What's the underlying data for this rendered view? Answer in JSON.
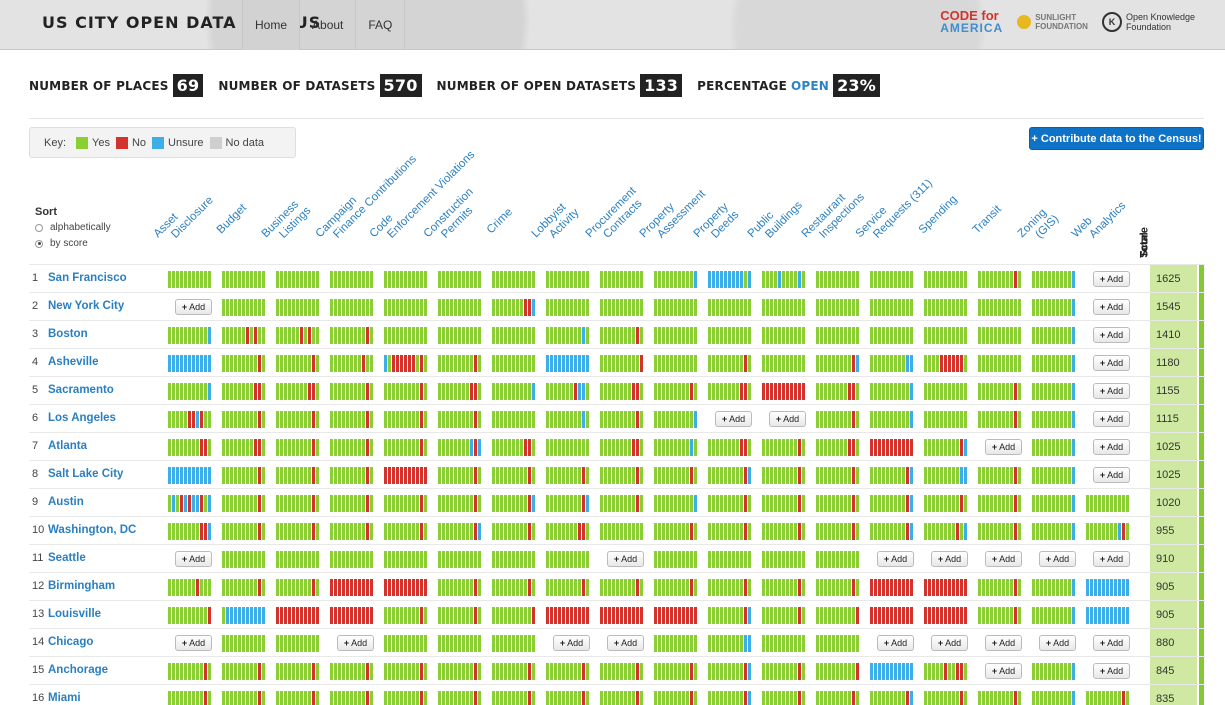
{
  "header": {
    "title": "US CITY OPEN DATA CENSUS",
    "nav": [
      "Home",
      "About",
      "FAQ"
    ],
    "logos": {
      "cfa_line1": "CODE for",
      "cfa_line2": "AMERICA",
      "sunlight_line1": "SUNLIGHT",
      "sunlight_line2": "FOUNDATION",
      "okf_line1": "Open Knowledge",
      "okf_line2": "Foundation"
    }
  },
  "stats": [
    {
      "label": "NUMBER OF PLACES",
      "value": "69"
    },
    {
      "label": "NUMBER OF DATASETS",
      "value": "570"
    },
    {
      "label": "NUMBER OF OPEN DATASETS",
      "value": "133"
    },
    {
      "label": "PERCENTAGE",
      "open_word": "OPEN",
      "value": "23%"
    }
  ],
  "key": {
    "label": "Key:",
    "items": [
      {
        "label": "Yes",
        "color": "#8ccf35"
      },
      {
        "label": "No",
        "color": "#d3332c"
      },
      {
        "label": "Unsure",
        "color": "#3eaee8"
      },
      {
        "label": "No data",
        "color": "#cfcfcf"
      }
    ]
  },
  "contribute_label": "+ Contribute data to the Census!",
  "sort": {
    "title": "Sort",
    "options": [
      "alphabetically",
      "by score"
    ],
    "selected": 1
  },
  "columns": [
    {
      "l1": "Asset",
      "l2": "Disclosure"
    },
    {
      "l1": "Budget",
      "l2": ""
    },
    {
      "l1": "Business",
      "l2": "Listings"
    },
    {
      "l1": "Campaign",
      "l2": "Finance Contributions"
    },
    {
      "l1": "Code",
      "l2": "Enforcement Violations"
    },
    {
      "l1": "Construction",
      "l2": "Permits"
    },
    {
      "l1": "Crime",
      "l2": ""
    },
    {
      "l1": "Lobbyist",
      "l2": "Activity"
    },
    {
      "l1": "Procurement",
      "l2": "Contracts"
    },
    {
      "l1": "Property",
      "l2": "Assessment"
    },
    {
      "l1": "Property",
      "l2": "Deeds"
    },
    {
      "l1": "Public",
      "l2": "Buildings"
    },
    {
      "l1": "Restaurant",
      "l2": "Inspections"
    },
    {
      "l1": "Service",
      "l2": "Requests (311)"
    },
    {
      "l1": "Spending",
      "l2": ""
    },
    {
      "l1": "Transit",
      "l2": ""
    },
    {
      "l1": "Zoning",
      "l2": "(GIS)"
    },
    {
      "l1": "Web",
      "l2": "Analytics"
    }
  ],
  "total_head": {
    "l1": "Total",
    "l2": "Score"
  },
  "add_label": "Add",
  "rows": [
    {
      "rank": "1",
      "city": "San Francisco",
      "score": "1625",
      "cells": [
        "GGGGGGGGGGG",
        "GGGGGGGGGGG",
        "GGGGGGGGGGG",
        "GGGGGGGGGGG",
        "GGGGGGGGGGG",
        "GGGGGGGGGGG",
        "GGGGGGGGGGG",
        "GGGGGGGGGGG",
        "GGGGGGGGGGG",
        "GGGGGGGGGGB",
        "BBBBBBBBBGB",
        "GGGGBGGGGBG",
        "GGGGGGGGGGG",
        "GGGGGGGGGGG",
        "GGGGGGGGGGG",
        "GGGGGGGGGRG",
        "GGGGGGGGGGB",
        "ADD"
      ]
    },
    {
      "rank": "2",
      "city": "New York City",
      "score": "1545",
      "cells": [
        "ADD",
        "GGGGGGGGGGG",
        "GGGGGGGGGGG",
        "GGGGGGGGGGG",
        "GGGGGGGGGGG",
        "GGGGGGGGGGG",
        "GGGGGGGGRRB",
        "GGGGGGGGGGG",
        "GGGGGGGGGGG",
        "GGGGGGGGGGG",
        "GGGGGGGGGGG",
        "GGGGGGGGGGG",
        "GGGGGGGGGGG",
        "GGGGGGGGGGG",
        "GGGGGGGGGGG",
        "GGGGGGGGGGG",
        "GGGGGGGGGGB",
        "ADD"
      ]
    },
    {
      "rank": "3",
      "city": "Boston",
      "score": "1410",
      "cells": [
        "GGGGGGGGGGB",
        "GGGGGGRGRGG",
        "GGGGGGRGRGG",
        "GGGGGGGGGRG",
        "GGGGGGGGGGG",
        "GGGGGGGGGGG",
        "GGGGGGGGGGG",
        "GGGGGGGGGBG",
        "GGGGGGGGGRG",
        "GGGGGGGGGGG",
        "GGGGGGGGGGG",
        "GGGGGGGGGGG",
        "GGGGGGGGGGG",
        "GGGGGGGGGGG",
        "GGGGGGGGGGG",
        "GGGGGGGGGGG",
        "GGGGGGGGGGB",
        "ADD"
      ]
    },
    {
      "rank": "4",
      "city": "Asheville",
      "score": "1180",
      "cells": [
        "BBBBBBBBBBB",
        "GGGGGGGGGRG",
        "GGGGGGGGGRG",
        "GGGGGGGGRGG",
        "BGRRRRRRGRG",
        "GGGGGGGGGRG",
        "GGGGGGGGGGG",
        "BBBBBBBBBBB",
        "GGGGGGGGGGR",
        "GGGGGGGGGGG",
        "GGGGGGGGGRG",
        "GGGGGGGGGGG",
        "GGGGGGGGGRB",
        "GGGGGGGGGBB",
        "GGGGRRRRRRG",
        "GGGGGGGGGGG",
        "GGGGGGGGGGB",
        "ADD"
      ]
    },
    {
      "rank": "5",
      "city": "Sacramento",
      "score": "1155",
      "cells": [
        "GGGGGGGGGGB",
        "GGGGGGGGRRG",
        "GGGGGGGGRRG",
        "GGGGGGGGGRG",
        "GGGGGGGGGRG",
        "GGGGGGGGRRG",
        "GGGGGGGGGGB",
        "GGGGGGGRBBG",
        "GGGGGGGGRRG",
        "GGGGGGGGGRG",
        "GGGGGGGGRRG",
        "RRRRRRRRRRR",
        "GGGGGGGGRRG",
        "GGGGGGGGGGB",
        "GGGGGGGGGGG",
        "GGGGGGGGGRG",
        "GGGGGGGGGGB",
        "ADD"
      ]
    },
    {
      "rank": "6",
      "city": "Los Angeles",
      "score": "1115",
      "cells": [
        "GGGGGRRBRGG",
        "GGGGGGGGGRG",
        "GGGGGGGGGRG",
        "GGGGGGGGGRG",
        "GGGGGGGGGRG",
        "GGGGGGGGGRG",
        "GGGGGGGGGGG",
        "GGGGGGGGGBG",
        "GGGGGGGGGRG",
        "GGGGGGGGGGB",
        "ADD",
        "ADD",
        "GGGGGGGGGRG",
        "GGGGGGGGGGB",
        "GGGGGGGGGGG",
        "GGGGGGGGGRG",
        "GGGGGGGGGGB",
        "ADD"
      ]
    },
    {
      "rank": "7",
      "city": "Atlanta",
      "score": "1025",
      "cells": [
        "GGGGGGGGRRG",
        "GGGGGGGGRRG",
        "GGGGGGGGGRG",
        "GGGGGGGGGRG",
        "GGGGGGGGGRG",
        "GGGGGGGGBRB",
        "GGGGGGGGRRG",
        "GGGGGGGGGGG",
        "GGGGGGGGRRG",
        "GGGGGGGGGBG",
        "GGGGGGGGRRG",
        "GGGGGGGGGRG",
        "GGGGGGGGRRG",
        "RRRRRRRRRRR",
        "GGGGGGGGGRB",
        "ADD",
        "GGGGGGGGGGB",
        "ADD"
      ]
    },
    {
      "rank": "8",
      "city": "Salt Lake City",
      "score": "1025",
      "cells": [
        "BBBBBBBBBBB",
        "GGGGGGGGGRG",
        "GGGGGGGGGRG",
        "GGGGGGGGGRG",
        "RRRRRRRRRRR",
        "GGGGGGGGGRG",
        "GGGGGGGGGRG",
        "GGGGGGGGGRG",
        "GGGGGGGGGRG",
        "GGGGGGGGGRG",
        "GGGGGGGGGRB",
        "GGGGGGGGGRG",
        "GGGGGGGGGRG",
        "GGGGGGGGGRB",
        "GGGGGGGGGBB",
        "GGGGGGGGGRG",
        "GGGGGGGGGGB",
        "ADD"
      ]
    },
    {
      "rank": "9",
      "city": "Austin",
      "score": "1020",
      "cells": [
        "GBGRBRBBRGB",
        "GGGGGGGGGRG",
        "GGGGGGGGGRG",
        "GGGGGGGGGRG",
        "GGGGGGGGGRG",
        "GGGGGGGGGRG",
        "GGGGGGGGGRB",
        "GGGGGGGGGRB",
        "GGGGGGGGGRG",
        "GGGGGGGGGGB",
        "GGGGGGGGGRG",
        "GGGGGGGGGRG",
        "GGGGGGGGGRG",
        "GGGGGGGGGRB",
        "GGGGGGGGGRG",
        "GGGGGGGGGRG",
        "GGGGGGGGGGB",
        "GGGGGGGGGGG"
      ]
    },
    {
      "rank": "10",
      "city": "Washington, DC",
      "score": "955",
      "cells": [
        "GGGGGGGGRRB",
        "GGGGGGGGGRG",
        "GGGGGGGGGRG",
        "GGGGGGGGGRG",
        "GGGGGGGGGRG",
        "GGGGGGGGGRB",
        "GGGGGGGGGRG",
        "GGGGGGGGRRG",
        "GGGGGGGGGGG",
        "GGGGGGGGGRG",
        "GGGGGGGGGRG",
        "GGGGGGGGGRG",
        "GGGGGGGGGRG",
        "GGGGGGGGGRB",
        "GGGGGGGGRGB",
        "GGGGGGGGGRG",
        "GGGGGGGGGGB",
        "GGGGGGGGBRG"
      ]
    },
    {
      "rank": "11",
      "city": "Seattle",
      "score": "910",
      "cells": [
        "ADD",
        "GGGGGGGGGGG",
        "GGGGGGGGGGG",
        "GGGGGGGGGGG",
        "GGGGGGGGGGG",
        "GGGGGGGGGGG",
        "GGGGGGGGGGG",
        "GGGGGGGGGGG",
        "ADD",
        "GGGGGGGGGGG",
        "GGGGGGGGGGG",
        "GGGGGGGGGGG",
        "GGGGGGGGGGG",
        "ADD",
        "ADD",
        "ADD",
        "ADD",
        "ADD"
      ]
    },
    {
      "rank": "12",
      "city": "Birmingham",
      "score": "905",
      "cells": [
        "GGGGGGGRGGG",
        "GGGGGGGGGRG",
        "GGGGGGGGGRG",
        "RRRRRRRRRRR",
        "RRRRRRRRRRR",
        "GGGGGGGGGRG",
        "GGGGGGGGGRG",
        "GGGGGGGGGRG",
        "GGGGGGGGGRG",
        "GGGGGGGGGRG",
        "GGGGGGGGGRG",
        "GGGGGGGGGRG",
        "GGGGGGGGGRG",
        "RRRRRRRRRRR",
        "RRRRRRRRRRR",
        "GGGGGGGGGRG",
        "GGGGGGGGGGB",
        "BBBBBBBBBBB"
      ]
    },
    {
      "rank": "13",
      "city": "Louisville",
      "score": "905",
      "cells": [
        "GGGGGGGGGGR",
        "GBBBBBBBBBB",
        "RRRRRRRRRRR",
        "RRRRRRRRRRR",
        "GGGGGGGGGRG",
        "GGGGGGGGGRG",
        "GGGGGGGGGGR",
        "RRRRRRRRRRR",
        "RRRRRRRRRRR",
        "RRRRRRRRRRR",
        "GGGGGGGGGRB",
        "GGGGGGGGGRG",
        "GGGGGGGGGGR",
        "RRRRRRRRRRR",
        "RRRRRRRRRRR",
        "GGGGGGGGGRG",
        "GGGGGGGGGGB",
        "BBBBBBBBBBB"
      ]
    },
    {
      "rank": "14",
      "city": "Chicago",
      "score": "880",
      "cells": [
        "ADD",
        "GGGGGGGGGGG",
        "GGGGGGGGGGG",
        "ADD",
        "GGGGGGGGGGG",
        "GGGGGGGGGGG",
        "GGGGGGGGGGG",
        "ADD",
        "ADD",
        "GGGGGGGGGGG",
        "GGGGGGGGGBB",
        "GGGGGGGGGGG",
        "GGGGGGGGGGG",
        "ADD",
        "ADD",
        "ADD",
        "ADD",
        "ADD"
      ]
    },
    {
      "rank": "15",
      "city": "Anchorage",
      "score": "845",
      "cells": [
        "GGGGGGGGGRG",
        "GGGGGGGGGRG",
        "GGGGGGGGGRG",
        "GGGGGGGGGRG",
        "GGGGGGGGGRG",
        "GGGGGGGGGRG",
        "GGGGGGGGGRG",
        "GGGGGGGGGRG",
        "GGGGGGGGGRG",
        "GGGGGGGGGRG",
        "GGGGGGGGGRB",
        "GGGGGGGGGRG",
        "GGGGGGGGGGR",
        "BBBBBBBBBBB",
        "GGGGGRGGRRG",
        "ADD",
        "GGGGGGGGGGB",
        "ADD"
      ]
    },
    {
      "rank": "16",
      "city": "Miami",
      "score": "835",
      "cells": [
        "GGGGGGGGGRG",
        "GGGGGGGGGRG",
        "GGGGGGGGGRG",
        "GGGGGGGGGRG",
        "GGGGGGGGGRG",
        "GGGGGGGGGRG",
        "GGGGGGGGGRG",
        "GGGGGGGGGRG",
        "GGGGGGGGGRG",
        "GGGGGGGGGRG",
        "GGGGGGGGGRB",
        "GGGGGGGGGRG",
        "GGGGGGGGGRG",
        "GGGGGGGGGRB",
        "GGGGGGGGGRG",
        "GGGGGGGGGRG",
        "GGGGGGGGGGB",
        "GGGGGGGGGRG"
      ]
    }
  ],
  "colors": {
    "G": "#8ccf35",
    "R": "#d3332c",
    "B": "#3eaee8",
    "N": "#cfcfcf"
  }
}
